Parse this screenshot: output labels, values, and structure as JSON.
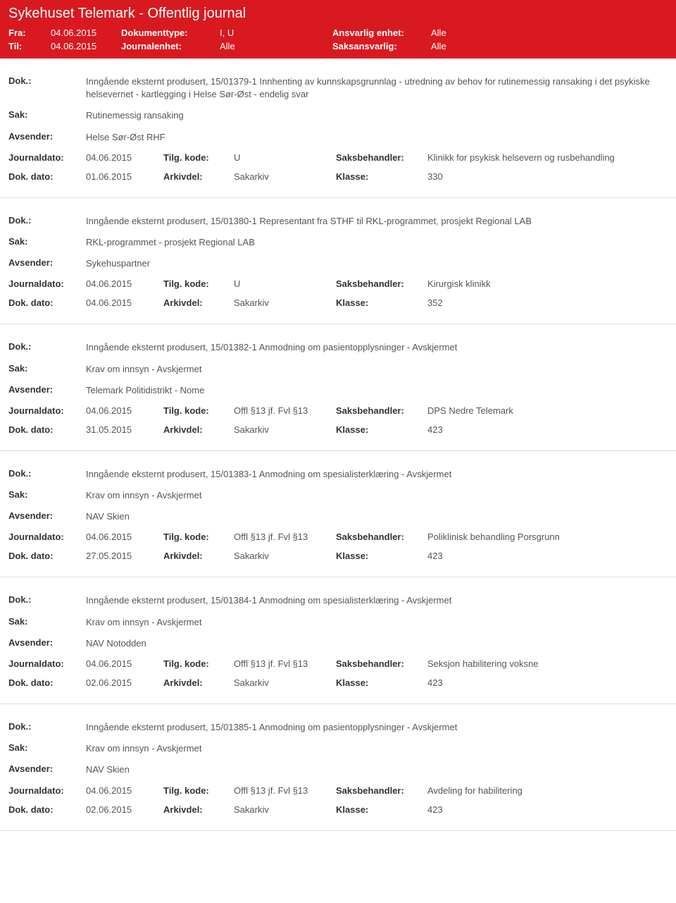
{
  "header": {
    "title": "Sykehuset Telemark - Offentlig journal",
    "fra_label": "Fra:",
    "fra_value": "04.06.2015",
    "til_label": "Til:",
    "til_value": "04.06.2015",
    "doktype_label": "Dokumenttype:",
    "doktype_value": "I, U",
    "journalenhet_label": "Journalenhet:",
    "journalenhet_value": "Alle",
    "ansvarlig_label": "Ansvarlig enhet:",
    "ansvarlig_value": "Alle",
    "saksansvarlig_label": "Saksansvarlig:",
    "saksansvarlig_value": "Alle"
  },
  "labels": {
    "dok": "Dok.:",
    "sak": "Sak:",
    "avsender": "Avsender:",
    "journaldato": "Journaldato:",
    "dokdato": "Dok. dato:",
    "tilgkode": "Tilg. kode:",
    "arkivdel": "Arkivdel:",
    "saksbehandler": "Saksbehandler:",
    "klasse": "Klasse:"
  },
  "entries": [
    {
      "dok": "Inngående eksternt produsert, 15/01379-1 Innhenting av kunnskapsgrunnlag - utredning av behov for rutinemessig ransaking i det psykiske helsevernet - kartlegging i Helse Sør-Øst - endelig svar",
      "sak": "Rutinemessig ransaking",
      "avsender": "Helse Sør-Øst RHF",
      "journaldato": "04.06.2015",
      "tilgkode": "U",
      "saksbehandler": "Klinikk for psykisk helsevern og rusbehandling",
      "dokdato": "01.06.2015",
      "arkivdel": "Sakarkiv",
      "klasse": "330"
    },
    {
      "dok": "Inngående eksternt produsert, 15/01380-1 Representant fra STHF til RKL-programmet, prosjekt Regional LAB",
      "sak": "RKL-programmet - prosjekt Regional LAB",
      "avsender": "Sykehuspartner",
      "journaldato": "04.06.2015",
      "tilgkode": "U",
      "saksbehandler": "Kirurgisk klinikk",
      "dokdato": "04.06.2015",
      "arkivdel": "Sakarkiv",
      "klasse": "352"
    },
    {
      "dok": "Inngående eksternt produsert, 15/01382-1 Anmodning om pasientopplysninger - Avskjermet",
      "sak": "Krav om innsyn - Avskjermet",
      "avsender": "Telemark Politidistrikt - Nome",
      "journaldato": "04.06.2015",
      "tilgkode": "Offl §13 jf. Fvl §13",
      "saksbehandler": "DPS Nedre Telemark",
      "dokdato": "31.05.2015",
      "arkivdel": "Sakarkiv",
      "klasse": "423"
    },
    {
      "dok": "Inngående eksternt produsert, 15/01383-1 Anmodning om spesialisterklæring - Avskjermet",
      "sak": "Krav om innsyn - Avskjermet",
      "avsender": "NAV Skien",
      "journaldato": "04.06.2015",
      "tilgkode": "Offl §13 jf. Fvl §13",
      "saksbehandler": "Poliklinisk behandling Porsgrunn",
      "dokdato": "27.05.2015",
      "arkivdel": "Sakarkiv",
      "klasse": "423"
    },
    {
      "dok": "Inngående eksternt produsert, 15/01384-1 Anmodning om spesialisterklæring - Avskjermet",
      "sak": "Krav om innsyn - Avskjermet",
      "avsender": "NAV Notodden",
      "journaldato": "04.06.2015",
      "tilgkode": "Offl §13 jf. Fvl §13",
      "saksbehandler": "Seksjon habilitering voksne",
      "dokdato": "02.06.2015",
      "arkivdel": "Sakarkiv",
      "klasse": "423"
    },
    {
      "dok": "Inngående eksternt produsert, 15/01385-1 Anmodning om pasientopplysninger - Avskjermet",
      "sak": "Krav om innsyn - Avskjermet",
      "avsender": "NAV Skien",
      "journaldato": "04.06.2015",
      "tilgkode": "Offl §13 jf. Fvl §13",
      "saksbehandler": "Avdeling for habilitering",
      "dokdato": "02.06.2015",
      "arkivdel": "Sakarkiv",
      "klasse": "423"
    }
  ]
}
